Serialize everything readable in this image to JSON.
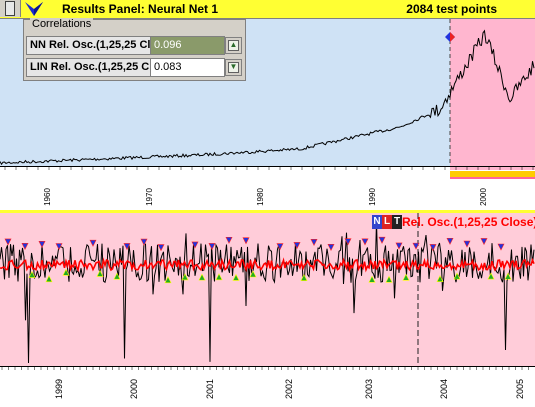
{
  "header": {
    "title": "Results Panel: Neural Net  1",
    "test_points": "2084 test points"
  },
  "correlations": {
    "title": "Correlations",
    "rows": [
      {
        "label": "NN Rel. Osc.(1,25,25 Cl",
        "value": "0.096"
      },
      {
        "label": "LIN Rel. Osc.(1,25,25 C",
        "value": "0.083"
      }
    ]
  },
  "top_chart": {
    "x_tick_labels": [
      "1960",
      "1970",
      "1980",
      "1990",
      "2000"
    ]
  },
  "bottom_chart": {
    "legend_badges": [
      "N",
      "L",
      "T"
    ],
    "legend": "Rel. Osc.(1,25,25 Close)",
    "x_tick_labels": [
      "1999",
      "2000",
      "2001",
      "2002",
      "2003",
      "2004",
      "2005"
    ]
  },
  "colors": {
    "header_bg": "#ffff33",
    "top_bg": "#cfe2f5",
    "test_region": "#ffb6cf",
    "bottom_bg": "#ffccd9",
    "oscillator": "#ff0000",
    "sell_marker": "#2233dd",
    "buy_marker": "#22aa22"
  }
}
